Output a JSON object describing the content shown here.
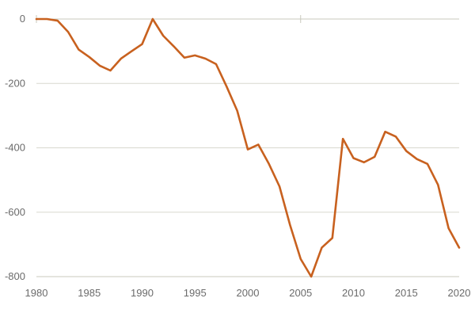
{
  "chart_data": {
    "type": "line",
    "title": "",
    "xlabel": "",
    "ylabel": "",
    "xlim": [
      1980,
      2020
    ],
    "ylim": [
      -800,
      0
    ],
    "x_ticks": [
      1980,
      1985,
      1990,
      1995,
      2000,
      2005,
      2010,
      2015,
      2020
    ],
    "y_ticks": [
      0,
      -200,
      -400,
      -600,
      -800
    ],
    "grid": "horizontal",
    "series": [
      {
        "color": "#c8611f",
        "x": [
          1980,
          1981,
          1982,
          1983,
          1984,
          1985,
          1986,
          1987,
          1988,
          1989,
          1990,
          1991,
          1992,
          1993,
          1994,
          1995,
          1996,
          1997,
          1998,
          1999,
          2000,
          2001,
          2002,
          2003,
          2004,
          2005,
          2006,
          2007,
          2008,
          2009,
          2010,
          2011,
          2012,
          2013,
          2014,
          2015,
          2016,
          2017,
          2018,
          2019,
          2020
        ],
        "y": [
          0,
          0,
          -5,
          -40,
          -95,
          -118,
          -145,
          -160,
          -123,
          -100,
          -78,
          0,
          -52,
          -85,
          -120,
          -113,
          -123,
          -140,
          -210,
          -285,
          -405,
          -390,
          -450,
          -520,
          -640,
          -745,
          -800,
          -710,
          -680,
          -372,
          -432,
          -445,
          -428,
          -350,
          -365,
          -410,
          -435,
          -450,
          -515,
          -650,
          -710
        ]
      }
    ]
  },
  "labels": {
    "y_ticks": [
      "0",
      "-200",
      "-400",
      "-600",
      "-800"
    ],
    "x_ticks": [
      "1980",
      "1985",
      "1990",
      "1995",
      "2000",
      "2005",
      "2010",
      "2015",
      "2020"
    ]
  }
}
